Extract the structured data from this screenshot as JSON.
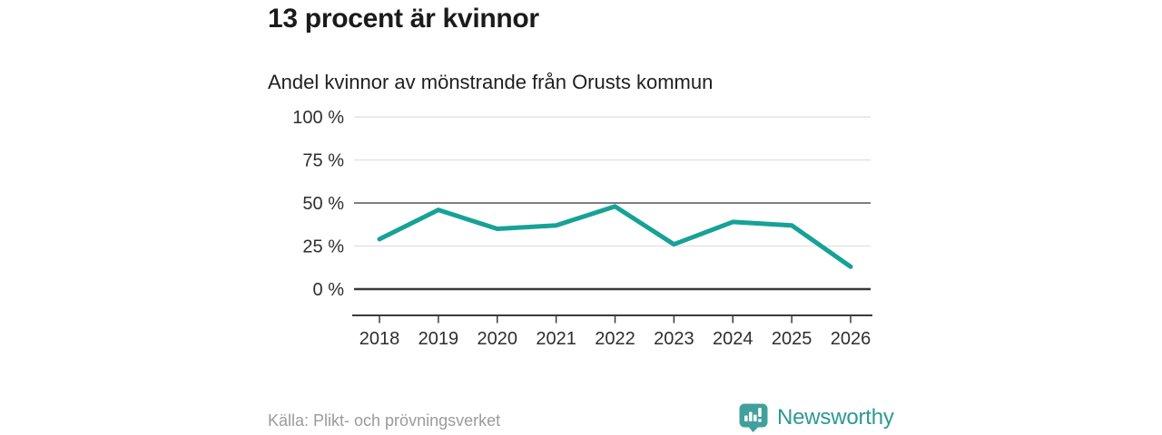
{
  "header": {
    "title": "13 procent är kvinnor",
    "subtitle": "Andel kvinnor av mönstrande från Orusts kommun"
  },
  "footer": {
    "source": "Källa: Plikt- och prövningsverket",
    "brand_name": "Newsworthy"
  },
  "colors": {
    "line": "#16a296",
    "brand_teal": "#41a09c",
    "brand_text": "#2e9894",
    "grid_light": "#e4e4e4",
    "grid_mid": "#7e7e7e",
    "grid_strong": "#3a3a3a"
  },
  "chart_data": {
    "type": "line",
    "title": "13 procent är kvinnor",
    "subtitle": "Andel kvinnor av mönstrande från Orusts kommun",
    "categories": [
      "2018",
      "2019",
      "2020",
      "2021",
      "2022",
      "2023",
      "2024",
      "2025",
      "2026"
    ],
    "series": [
      {
        "name": "Andel kvinnor av mönstrande från Orusts kommun (%)",
        "values": [
          29,
          46,
          35,
          37,
          48,
          26,
          39,
          37,
          13
        ]
      }
    ],
    "xlabel": "",
    "ylabel": "",
    "ylim": [
      0,
      100
    ],
    "yticks": [
      0,
      25,
      50,
      75,
      100
    ],
    "ytick_labels": [
      "0 %",
      "25 %",
      "50 %",
      "75 %",
      "100 %"
    ],
    "grid": true,
    "legend": false,
    "line_color": "#16a296",
    "emphasized_gridlines": [
      0,
      50
    ]
  }
}
